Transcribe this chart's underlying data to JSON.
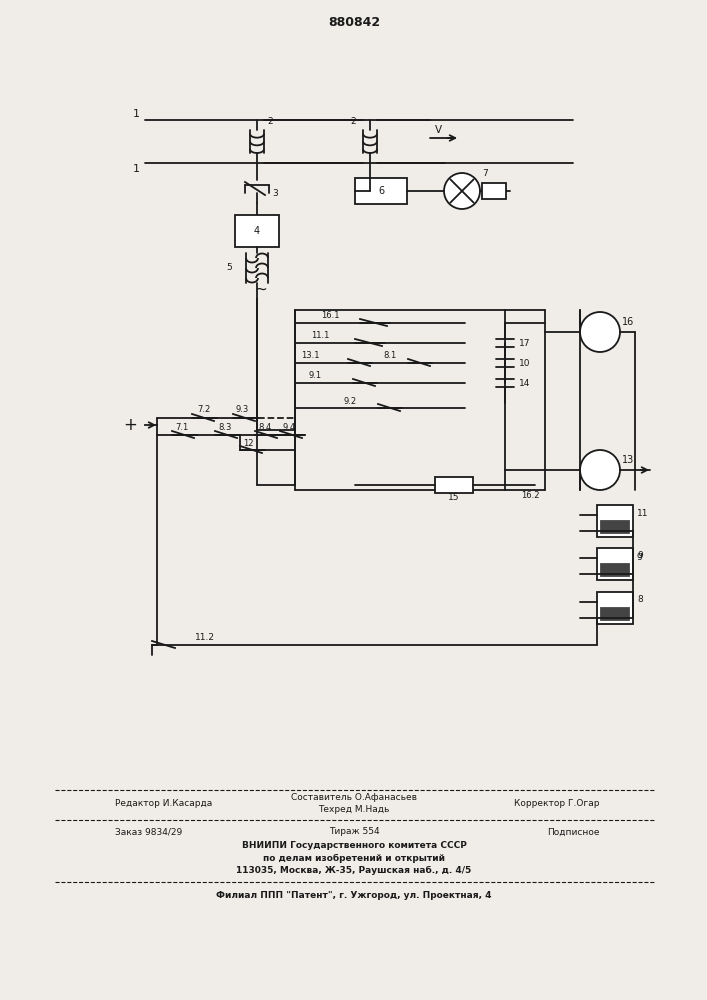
{
  "title": "880842",
  "bg_color": "#f0ede8",
  "line_color": "#1a1a1a",
  "lw": 1.3,
  "footer": {
    "editor": "Редактор И.Касарда",
    "composer": "Составитель О.Афанасьев",
    "techred": "Техред М.Надь",
    "corrector": "Корректор Г.Огар",
    "order": "Заказ 9834/29",
    "tirazh": "Тираж 554",
    "podp": "Подписное",
    "line1": "ВНИИПИ Государственного комитета СССР",
    "line2": "по делам изобретений и открытий",
    "line3": "113035, Москва, Ж-35, Раушская наб., д. 4/5",
    "patent": "Филиал ППП \"Патент\", г. Ужгород, ул. Проектная, 4"
  }
}
